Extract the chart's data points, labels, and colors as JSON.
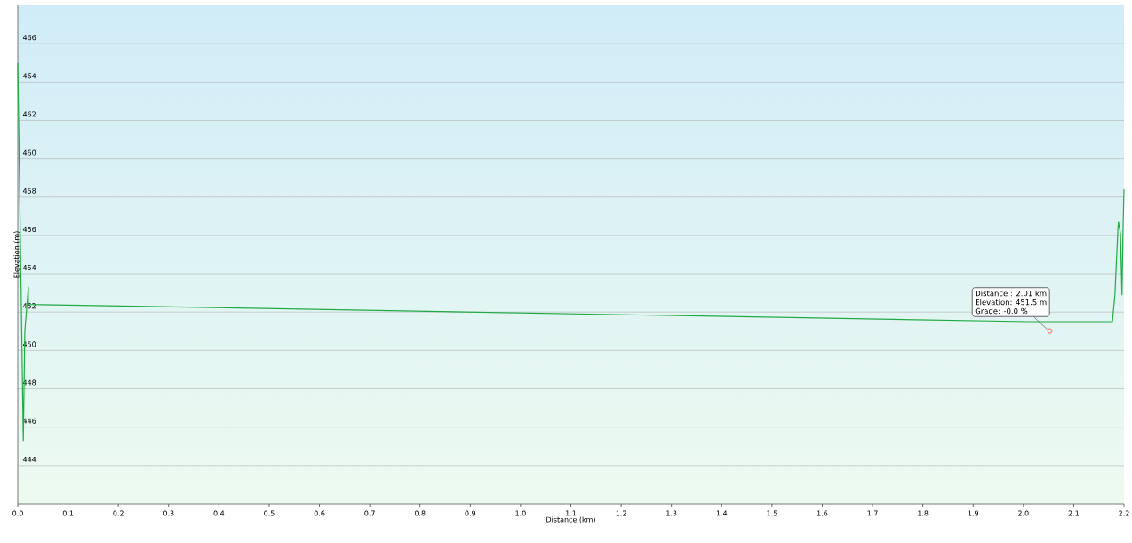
{
  "chart_data": {
    "type": "line",
    "xlabel": "Distance  (km)",
    "ylabel": "Elevation (m)",
    "xlim": [
      0,
      2.2
    ],
    "ylim": [
      442,
      468
    ],
    "xticks": [
      {
        "value": 0,
        "label": "0.0"
      },
      {
        "value": 0.1,
        "label": "0.1"
      },
      {
        "value": 0.2,
        "label": "0.2"
      },
      {
        "value": 0.3,
        "label": "0.3"
      },
      {
        "value": 0.4,
        "label": "0.4"
      },
      {
        "value": 0.5,
        "label": "0.5"
      },
      {
        "value": 0.6,
        "label": "0.6"
      },
      {
        "value": 0.7,
        "label": "0.7"
      },
      {
        "value": 0.8,
        "label": "0.8"
      },
      {
        "value": 0.9,
        "label": "0.9"
      },
      {
        "value": 1,
        "label": "1.0"
      },
      {
        "value": 1.1,
        "label": "1.1"
      },
      {
        "value": 1.2,
        "label": "1.2"
      },
      {
        "value": 1.3,
        "label": "1.3"
      },
      {
        "value": 1.4,
        "label": "1.4"
      },
      {
        "value": 1.5,
        "label": "1.5"
      },
      {
        "value": 1.6,
        "label": "1.6"
      },
      {
        "value": 1.7,
        "label": "1.7"
      },
      {
        "value": 1.8,
        "label": "1.8"
      },
      {
        "value": 1.9,
        "label": "1.9"
      },
      {
        "value": 2,
        "label": "2.0"
      },
      {
        "value": 2.1,
        "label": "2.1"
      },
      {
        "value": 2.2,
        "label": "2.2"
      }
    ],
    "yticks": [
      444,
      446,
      448,
      450,
      452,
      454,
      456,
      458,
      460,
      462,
      464,
      466
    ],
    "grid": "y",
    "marker": "none",
    "line_style": "solid",
    "series": [
      {
        "color": "#22aa44",
        "x": [
          0,
          0.011,
          0.014,
          0.021,
          0.021,
          2.01,
          2.177,
          2.182,
          2.188,
          2.189,
          2.193,
          2.196,
          2.198,
          2.2
        ],
        "values": [
          465,
          445.3,
          451,
          453.3,
          452.4,
          451.5,
          451.5,
          452.9,
          456.4,
          456.7,
          456.1,
          452.9,
          456.2,
          458.4
        ]
      }
    ],
    "annotations": [
      "Distance : 2.01 km",
      "Elevation: 451.5 m",
      "Grade: -0.0 %"
    ]
  }
}
